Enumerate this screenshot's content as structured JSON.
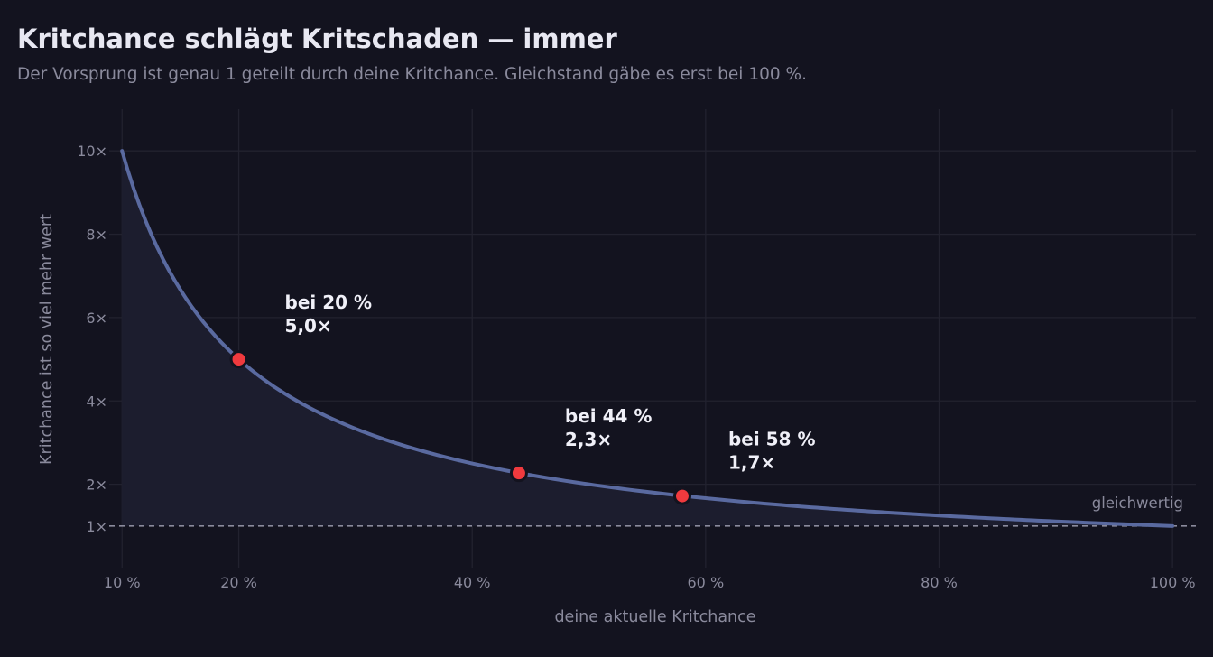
{
  "header": {
    "title": "Kritchance schlägt Kritschaden — immer",
    "subtitle": "Der Vorsprung ist genau 1 geteilt durch deine Kritchance. Gleichstand gäbe es erst bei 100 %."
  },
  "chart_data": {
    "type": "line",
    "xlabel": "deine aktuelle Kritchance",
    "ylabel": "Kritchance ist so viel mehr wert",
    "xlim": [
      8.9,
      102
    ],
    "ylim": [
      0,
      11
    ],
    "x_ticks": [
      10,
      20,
      40,
      60,
      80,
      100
    ],
    "x_tick_labels": [
      "10 %",
      "20 %",
      "40 %",
      "60 %",
      "80 %",
      "100 %"
    ],
    "y_ticks": [
      1,
      2,
      4,
      6,
      8,
      10
    ],
    "y_tick_labels": [
      "1×",
      "2×",
      "4×",
      "6×",
      "8×",
      "10×"
    ],
    "grid": true,
    "series": [
      {
        "formula": "y = 100 / x",
        "x_range": [
          10,
          100
        ],
        "color": "#5a6aa0",
        "fill": "#1c1d2e"
      }
    ],
    "reference_line": {
      "y": 1,
      "label": "gleichwertig",
      "color": "#8a8a9c"
    },
    "highlights": [
      {
        "x": 20,
        "y": 5.0,
        "line1": "bei 20 %",
        "line2": "5,0×"
      },
      {
        "x": 44,
        "y": 2.27,
        "line1": "bei 44 %",
        "line2": "2,3×"
      },
      {
        "x": 58,
        "y": 1.72,
        "line1": "bei 58 %",
        "line2": "1,7×"
      }
    ],
    "colors": {
      "background": "#13131f",
      "grid": "#22222f",
      "marker": "#f03a3e",
      "marker_edge": "#13131f"
    }
  }
}
